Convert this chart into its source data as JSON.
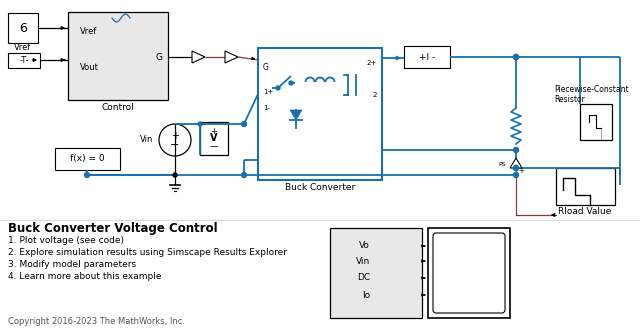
{
  "bg_color": "#ffffff",
  "title": "Buck Converter Voltage Control",
  "subtitle_lines": [
    "1. Plot voltage (see code)",
    "2. Explore simulation results using Simscape Results Explorer",
    "3. Modify model parameters",
    "4. Learn more about this example"
  ],
  "copyright": "Copyright 2016-2023 The MathWorks, Inc.",
  "blue": "#1a6faf",
  "red_brown": "#8B3A3A",
  "black": "#000000",
  "box_fill": "#e8e8e8",
  "dark_gray": "#555555"
}
